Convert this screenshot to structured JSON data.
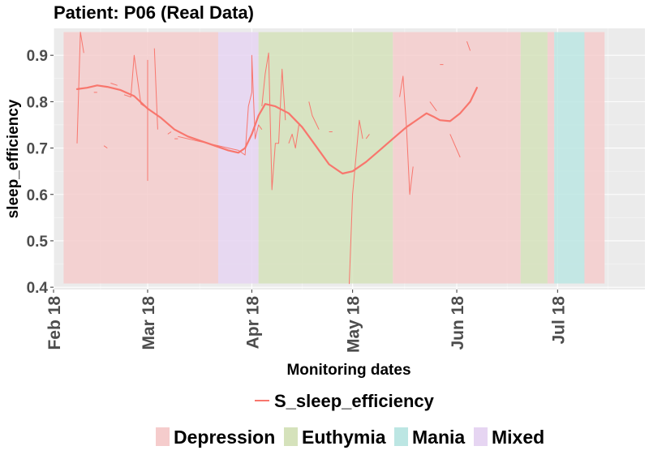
{
  "chart_data": {
    "type": "line",
    "title": "Patient: P06 (Real Data)",
    "xlabel": "Monitoring dates",
    "ylabel": "sleep_efficiency",
    "x_axis_type": "date",
    "xlim": [
      "2018-02-01",
      "2018-07-27"
    ],
    "ylim": [
      0.395,
      0.958
    ],
    "x_ticks": [
      {
        "date": "2018-02-01",
        "label": "Feb 18"
      },
      {
        "date": "2018-03-01",
        "label": "Mar 18"
      },
      {
        "date": "2018-04-01",
        "label": "Apr 18"
      },
      {
        "date": "2018-05-01",
        "label": "May 18"
      },
      {
        "date": "2018-06-01",
        "label": "Jun 18"
      },
      {
        "date": "2018-07-01",
        "label": "Jul 18"
      }
    ],
    "y_ticks": [
      0.4,
      0.5,
      0.6,
      0.7,
      0.8,
      0.9
    ],
    "grid": true,
    "legend_position": "bottom",
    "line_legend": "S_sleep_efficiency",
    "line_color": "#f8766d",
    "band_range": [
      0.408,
      0.95
    ],
    "state_bands": [
      {
        "state": "Depression",
        "start": "2018-02-04",
        "end": "2018-03-22"
      },
      {
        "state": "Mixed",
        "start": "2018-03-22",
        "end": "2018-04-03"
      },
      {
        "state": "Euthymia",
        "start": "2018-04-03",
        "end": "2018-05-13"
      },
      {
        "state": "Depression",
        "start": "2018-05-13",
        "end": "2018-06-20"
      },
      {
        "state": "Euthymia",
        "start": "2018-06-20",
        "end": "2018-06-28"
      },
      {
        "state": "Depression",
        "start": "2018-06-28",
        "end": "2018-06-30"
      },
      {
        "state": "Mania",
        "start": "2018-06-30",
        "end": "2018-07-09"
      },
      {
        "state": "Depression",
        "start": "2018-07-09",
        "end": "2018-07-15"
      }
    ],
    "state_legend": [
      {
        "name": "Depression",
        "color": "#f5cccc"
      },
      {
        "name": "Euthymia",
        "color": "#d5e2bb"
      },
      {
        "name": "Mania",
        "color": "#bce6e3"
      },
      {
        "name": "Mixed",
        "color": "#e6d5f2"
      }
    ],
    "series": [
      {
        "name": "S_sleep_efficiency",
        "kind": "raw",
        "segments": [
          [
            [
              "2018-02-08",
              0.71
            ],
            [
              "2018-02-09",
              0.95
            ],
            [
              "2018-02-10",
              0.905
            ]
          ],
          [
            [
              "2018-02-13",
              0.82
            ],
            [
              "2018-02-14",
              0.82
            ]
          ],
          [
            [
              "2018-02-16",
              0.705
            ],
            [
              "2018-02-17",
              0.7
            ]
          ],
          [
            [
              "2018-02-18",
              0.84
            ],
            [
              "2018-02-20",
              0.835
            ]
          ],
          [
            [
              "2018-02-22",
              0.815
            ],
            [
              "2018-02-24",
              0.81
            ],
            [
              "2018-02-25",
              0.9
            ],
            [
              "2018-02-27",
              0.795
            ],
            [
              "2018-02-28",
              0.79
            ]
          ],
          [
            [
              "2018-02-29",
              0.69
            ],
            [
              "2018-03-01",
              0.63
            ],
            [
              "2018-03-01",
              0.89
            ]
          ],
          [
            [
              "2018-03-03",
              0.915
            ],
            [
              "2018-03-04",
              0.74
            ]
          ],
          [
            [
              "2018-03-07",
              0.73
            ],
            [
              "2018-03-08",
              0.735
            ]
          ],
          [
            [
              "2018-03-09",
              0.72
            ],
            [
              "2018-03-10",
              0.72
            ]
          ],
          [
            [
              "2018-03-10",
              0.725
            ],
            [
              "2018-03-28",
              0.695
            ]
          ],
          [
            [
              "2018-03-28",
              0.695
            ],
            [
              "2018-03-30",
              0.685
            ],
            [
              "2018-03-31",
              0.79
            ],
            [
              "2018-04-01",
              0.82
            ],
            [
              "2018-04-01",
              0.9
            ],
            [
              "2018-04-02",
              0.72
            ],
            [
              "2018-04-03",
              0.75
            ],
            [
              "2018-04-04",
              0.74
            ]
          ],
          [
            [
              "2018-04-04",
              0.79
            ],
            [
              "2018-04-05",
              0.86
            ],
            [
              "2018-04-06",
              0.905
            ],
            [
              "2018-04-07",
              0.61
            ],
            [
              "2018-04-08",
              0.71
            ],
            [
              "2018-04-09",
              0.71
            ],
            [
              "2018-04-10",
              0.87
            ],
            [
              "2018-04-11",
              0.76
            ]
          ],
          [
            [
              "2018-04-12",
              0.71
            ],
            [
              "2018-04-13",
              0.73
            ],
            [
              "2018-04-14",
              0.7
            ],
            [
              "2018-04-15",
              0.75
            ]
          ],
          [
            [
              "2018-04-18",
              0.8
            ],
            [
              "2018-04-19",
              0.77
            ],
            [
              "2018-04-21",
              0.74
            ]
          ],
          [
            [
              "2018-04-24",
              0.735
            ],
            [
              "2018-04-25",
              0.735
            ]
          ],
          [
            [
              "2018-04-30",
              0.407
            ],
            [
              "2018-05-01",
              0.6
            ],
            [
              "2018-05-03",
              0.76
            ],
            [
              "2018-05-04",
              0.72
            ]
          ],
          [
            [
              "2018-05-05",
              0.72
            ],
            [
              "2018-05-06",
              0.73
            ]
          ],
          [
            [
              "2018-05-15",
              0.81
            ],
            [
              "2018-05-16",
              0.855
            ],
            [
              "2018-05-17",
              0.75
            ],
            [
              "2018-05-18",
              0.6
            ],
            [
              "2018-05-19",
              0.66
            ]
          ],
          [
            [
              "2018-05-24",
              0.8
            ],
            [
              "2018-05-26",
              0.78
            ]
          ],
          [
            [
              "2018-05-27",
              0.88
            ],
            [
              "2018-05-28",
              0.88
            ]
          ],
          [
            [
              "2018-05-30",
              0.73
            ],
            [
              "2018-06-02",
              0.68
            ]
          ],
          [
            [
              "2018-06-04",
              0.93
            ],
            [
              "2018-06-05",
              0.91
            ]
          ]
        ]
      },
      {
        "name": "S_sleep_efficiency",
        "kind": "smoothed",
        "points": [
          [
            "2018-02-08",
            0.827
          ],
          [
            "2018-02-11",
            0.83
          ],
          [
            "2018-02-14",
            0.835
          ],
          [
            "2018-02-17",
            0.832
          ],
          [
            "2018-02-21",
            0.825
          ],
          [
            "2018-02-25",
            0.812
          ],
          [
            "2018-03-01",
            0.785
          ],
          [
            "2018-03-05",
            0.765
          ],
          [
            "2018-03-09",
            0.74
          ],
          [
            "2018-03-13",
            0.725
          ],
          [
            "2018-03-17",
            0.715
          ],
          [
            "2018-03-21",
            0.705
          ],
          [
            "2018-03-25",
            0.695
          ],
          [
            "2018-03-28",
            0.69
          ],
          [
            "2018-03-30",
            0.7
          ],
          [
            "2018-04-01",
            0.73
          ],
          [
            "2018-04-03",
            0.77
          ],
          [
            "2018-04-05",
            0.795
          ],
          [
            "2018-04-08",
            0.79
          ],
          [
            "2018-04-12",
            0.775
          ],
          [
            "2018-04-16",
            0.745
          ],
          [
            "2018-04-20",
            0.705
          ],
          [
            "2018-04-24",
            0.665
          ],
          [
            "2018-04-28",
            0.645
          ],
          [
            "2018-05-01",
            0.65
          ],
          [
            "2018-05-05",
            0.67
          ],
          [
            "2018-05-09",
            0.695
          ],
          [
            "2018-05-13",
            0.72
          ],
          [
            "2018-05-17",
            0.745
          ],
          [
            "2018-05-21",
            0.765
          ],
          [
            "2018-05-23",
            0.775
          ],
          [
            "2018-05-25",
            0.768
          ],
          [
            "2018-05-27",
            0.76
          ],
          [
            "2018-05-30",
            0.758
          ],
          [
            "2018-06-02",
            0.775
          ],
          [
            "2018-06-05",
            0.8
          ],
          [
            "2018-06-07",
            0.83
          ]
        ]
      }
    ]
  }
}
